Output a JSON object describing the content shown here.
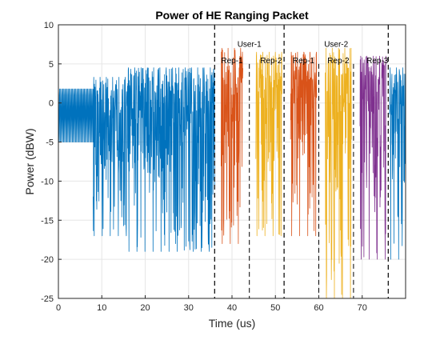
{
  "chart_data": {
    "type": "line",
    "title": "Power of HE Ranging Packet",
    "xlabel": "Time (us)",
    "ylabel": "Power (dBW)",
    "xlim": [
      0,
      80
    ],
    "ylim": [
      -25,
      10
    ],
    "xticks": [
      0,
      10,
      20,
      30,
      40,
      50,
      60,
      70
    ],
    "yticks": [
      -25,
      -20,
      -15,
      -10,
      -5,
      0,
      5,
      10
    ],
    "grid": true,
    "legend": "none",
    "colors": {
      "preamble": "#0072BD",
      "rep1": "#D95319",
      "rep2": "#EDB120",
      "rep3": "#7E2F8E"
    },
    "segments": [
      {
        "start": 0,
        "end": 8,
        "color": "preamble",
        "min": -5,
        "max": 1.8,
        "style": "bands",
        "bands": [
          1.8,
          1.0,
          -1.2,
          -3.2,
          -5.0
        ]
      },
      {
        "start": 8,
        "end": 16,
        "color": "preamble",
        "min": -17,
        "max": 3.3,
        "style": "noise",
        "seed": 11
      },
      {
        "start": 16,
        "end": 36,
        "color": "preamble",
        "min": -19,
        "max": 4.5,
        "style": "noise",
        "seed": 23
      },
      {
        "start": 37.5,
        "end": 42.5,
        "color": "rep1",
        "min": -18,
        "max": 7,
        "style": "noise",
        "seed": 37
      },
      {
        "start": 45.5,
        "end": 51.5,
        "color": "rep2",
        "min": -17,
        "max": 6.5,
        "style": "noise",
        "seed": 41
      },
      {
        "start": 53.5,
        "end": 59.5,
        "color": "rep1",
        "min": -17,
        "max": 6.5,
        "style": "noise",
        "seed": 53
      },
      {
        "start": 61.5,
        "end": 67.5,
        "color": "rep2",
        "min": -25,
        "max": 7,
        "style": "noise",
        "seed": 61
      },
      {
        "start": 69.5,
        "end": 75.5,
        "color": "rep3",
        "min": -20,
        "max": 6,
        "style": "noise",
        "seed": 71
      },
      {
        "start": 76.3,
        "end": 80,
        "color": "preamble",
        "min": -20,
        "max": 4.5,
        "style": "noise",
        "seed": 83
      }
    ],
    "dividers": [
      36,
      52,
      76
    ],
    "subdividers": [
      44,
      60,
      68
    ],
    "annotations": [
      {
        "text": "User-1",
        "x": 44,
        "y": 7.6
      },
      {
        "text": "User-2",
        "x": 64,
        "y": 7.6
      },
      {
        "text": "Rep-1",
        "x": 40,
        "y": 5.5
      },
      {
        "text": "Rep-2",
        "x": 49,
        "y": 5.5
      },
      {
        "text": "Rep-1",
        "x": 56.5,
        "y": 5.5
      },
      {
        "text": "Rep-2",
        "x": 64.5,
        "y": 5.5
      },
      {
        "text": "Rep-3",
        "x": 73.5,
        "y": 5.5
      }
    ]
  }
}
